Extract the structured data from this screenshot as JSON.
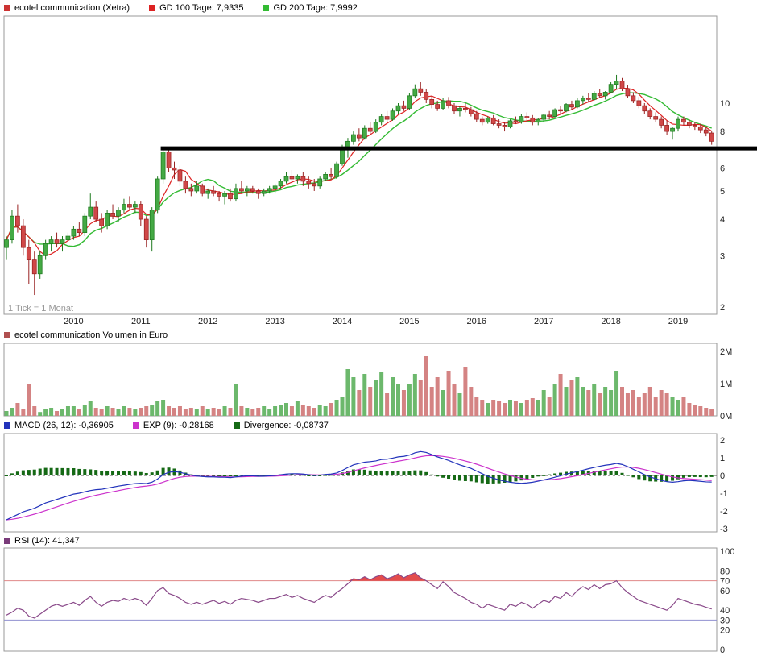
{
  "header": {
    "title": "ecotel communication (Xetra)",
    "gd100_label": "GD 100 Tage: 7,9335",
    "gd200_label": "GD 200 Tage: 7,9992"
  },
  "price_panel": {
    "tick_note": "1 Tick = 1 Monat",
    "y_ticks": [
      10,
      8,
      6,
      5,
      4,
      3,
      2
    ],
    "x_labels": [
      "2010",
      "2011",
      "2012",
      "2013",
      "2014",
      "2015",
      "2016",
      "2017",
      "2018",
      "2019"
    ]
  },
  "volume_panel": {
    "title": "ecotel communication Volumen in Euro",
    "y_ticks": [
      "2M",
      "1M",
      "0M"
    ]
  },
  "macd_panel": {
    "macd_label": "MACD (26, 12): -0,36905",
    "exp_label": "EXP (9): -0,28168",
    "div_label": "Divergence: -0,08737",
    "y_ticks": [
      2,
      1,
      0,
      -1,
      -2,
      -3
    ]
  },
  "rsi_panel": {
    "label": "RSI (14): 41,347",
    "y_ticks": [
      100,
      80,
      70,
      60,
      40,
      30,
      20,
      0
    ]
  },
  "colors": {
    "title_marker": "#cc3333",
    "gd100": "#dd2222",
    "gd200": "#33bb33",
    "up": "#44a944",
    "up_border": "#1e7a1e",
    "down": "#d04848",
    "down_border": "#992222",
    "resistance": "#000000",
    "volume_marker": "#b05050",
    "vol_up": "#6cb86c",
    "vol_down": "#d48383",
    "macd_line": "#2233bb",
    "exp_line": "#cc33cc",
    "divergence": "#156915",
    "rsi_line": "#8a4a8a",
    "rsi_marker": "#7a3b7a",
    "rsi_fill": "#e03838",
    "overbought_line": "#e08888",
    "oversold_line": "#9090d0",
    "overbought_text": "#cc3333",
    "oversold_text": "#5555cc",
    "frame": "#999999"
  },
  "chart_data": [
    {
      "type": "candlestick",
      "title": "ecotel communication (Xetra)",
      "x_start": "2009-01",
      "x_interval": "month",
      "yscale": "log",
      "ylim": [
        2,
        12.5
      ],
      "y_ticks": [
        10,
        8,
        6,
        5,
        4,
        3,
        2
      ],
      "moving_averages": [
        {
          "name": "GD 100 Tage",
          "current": 7.9335,
          "window_months": 5,
          "color_key": "gd100"
        },
        {
          "name": "GD 200 Tage",
          "current": 7.9992,
          "window_months": 10,
          "color_key": "gd200"
        }
      ],
      "resistance_line": {
        "level": 7,
        "start_index": 28
      },
      "note": "1 Tick = 1 Monat",
      "ohlc": [
        [
          3.2,
          3.5,
          2.9,
          3.4
        ],
        [
          3.4,
          4.3,
          3.3,
          4.1
        ],
        [
          4.1,
          4.5,
          3.6,
          3.8
        ],
        [
          3.8,
          4.0,
          3.0,
          3.2
        ],
        [
          3.2,
          3.4,
          2.4,
          2.9
        ],
        [
          2.9,
          3.1,
          2.2,
          2.6
        ],
        [
          2.6,
          3.1,
          2.5,
          3.0
        ],
        [
          3.0,
          3.4,
          2.9,
          3.3
        ],
        [
          3.3,
          3.5,
          3.1,
          3.4
        ],
        [
          3.4,
          3.6,
          3.2,
          3.3
        ],
        [
          3.3,
          3.5,
          3.1,
          3.4
        ],
        [
          3.4,
          3.6,
          3.3,
          3.5
        ],
        [
          3.5,
          3.8,
          3.4,
          3.7
        ],
        [
          3.7,
          3.9,
          3.5,
          3.6
        ],
        [
          3.6,
          4.2,
          3.5,
          4.1
        ],
        [
          4.1,
          4.9,
          4.0,
          4.4
        ],
        [
          4.4,
          4.6,
          3.9,
          4.0
        ],
        [
          4.0,
          4.2,
          3.6,
          3.8
        ],
        [
          3.8,
          4.3,
          3.7,
          4.2
        ],
        [
          4.2,
          4.5,
          4.0,
          4.1
        ],
        [
          4.1,
          4.4,
          3.9,
          4.3
        ],
        [
          4.3,
          4.7,
          4.2,
          4.5
        ],
        [
          4.5,
          4.8,
          4.3,
          4.4
        ],
        [
          4.4,
          4.6,
          4.2,
          4.5
        ],
        [
          4.5,
          4.6,
          3.8,
          4.0
        ],
        [
          4.0,
          4.1,
          3.2,
          3.4
        ],
        [
          3.4,
          4.4,
          3.1,
          4.3
        ],
        [
          4.3,
          5.6,
          4.2,
          5.5
        ],
        [
          5.5,
          7.05,
          5.3,
          6.8
        ],
        [
          6.8,
          7.0,
          5.8,
          6.0
        ],
        [
          6.0,
          6.3,
          5.5,
          5.9
        ],
        [
          5.9,
          6.1,
          5.2,
          5.4
        ],
        [
          5.4,
          5.6,
          4.9,
          5.1
        ],
        [
          5.1,
          5.3,
          4.8,
          5.0
        ],
        [
          5.0,
          5.4,
          4.9,
          5.2
        ],
        [
          5.2,
          5.3,
          4.8,
          4.9
        ],
        [
          4.9,
          5.1,
          4.7,
          5.0
        ],
        [
          5.0,
          5.2,
          4.8,
          4.9
        ],
        [
          4.9,
          5.0,
          4.6,
          4.8
        ],
        [
          4.8,
          5.0,
          4.5,
          4.9
        ],
        [
          4.9,
          5.1,
          4.6,
          4.7
        ],
        [
          4.7,
          5.3,
          4.6,
          5.1
        ],
        [
          5.1,
          5.4,
          4.9,
          5.0
        ],
        [
          5.0,
          5.2,
          4.8,
          5.1
        ],
        [
          5.1,
          5.2,
          4.9,
          5.0
        ],
        [
          5.0,
          5.1,
          4.7,
          4.9
        ],
        [
          4.9,
          5.1,
          4.8,
          5.0
        ],
        [
          5.0,
          5.2,
          4.9,
          5.1
        ],
        [
          5.1,
          5.3,
          4.9,
          5.2
        ],
        [
          5.2,
          5.5,
          5.1,
          5.4
        ],
        [
          5.4,
          5.8,
          5.3,
          5.6
        ],
        [
          5.6,
          5.9,
          5.4,
          5.5
        ],
        [
          5.5,
          5.7,
          5.3,
          5.6
        ],
        [
          5.6,
          5.8,
          5.2,
          5.4
        ],
        [
          5.4,
          5.6,
          5.1,
          5.3
        ],
        [
          5.3,
          5.5,
          5.0,
          5.2
        ],
        [
          5.2,
          5.6,
          5.1,
          5.5
        ],
        [
          5.5,
          5.8,
          5.4,
          5.7
        ],
        [
          5.7,
          6.0,
          5.5,
          5.6
        ],
        [
          5.6,
          6.3,
          5.5,
          6.2
        ],
        [
          6.2,
          7.2,
          6.1,
          7.0
        ],
        [
          7.0,
          7.6,
          6.5,
          7.4
        ],
        [
          7.4,
          8.0,
          7.2,
          7.8
        ],
        [
          7.8,
          8.2,
          7.4,
          7.6
        ],
        [
          7.6,
          8.4,
          7.5,
          8.2
        ],
        [
          8.2,
          8.6,
          7.8,
          8.0
        ],
        [
          8.0,
          8.8,
          7.9,
          8.6
        ],
        [
          8.6,
          9.2,
          8.4,
          9.0
        ],
        [
          9.0,
          9.4,
          8.6,
          8.8
        ],
        [
          8.8,
          9.6,
          8.7,
          9.4
        ],
        [
          9.4,
          10.0,
          9.2,
          9.8
        ],
        [
          9.8,
          10.2,
          9.4,
          9.6
        ],
        [
          9.6,
          10.8,
          9.5,
          10.6
        ],
        [
          10.6,
          11.6,
          10.4,
          11.2
        ],
        [
          11.2,
          11.8,
          10.6,
          10.9
        ],
        [
          10.9,
          11.2,
          10.0,
          10.3
        ],
        [
          10.3,
          10.6,
          9.6,
          9.9
        ],
        [
          9.9,
          10.2,
          9.4,
          9.6
        ],
        [
          9.6,
          10.4,
          9.5,
          10.2
        ],
        [
          10.2,
          10.5,
          9.6,
          9.8
        ],
        [
          9.8,
          10.0,
          9.2,
          9.4
        ],
        [
          9.4,
          9.8,
          9.0,
          9.6
        ],
        [
          9.6,
          10.0,
          9.3,
          9.5
        ],
        [
          9.5,
          9.7,
          9.0,
          9.2
        ],
        [
          9.2,
          9.4,
          8.6,
          8.8
        ],
        [
          8.8,
          9.0,
          8.4,
          8.6
        ],
        [
          8.6,
          9.0,
          8.5,
          8.9
        ],
        [
          8.9,
          9.1,
          8.4,
          8.5
        ],
        [
          8.5,
          8.8,
          8.2,
          8.4
        ],
        [
          8.4,
          8.6,
          8.0,
          8.3
        ],
        [
          8.3,
          8.8,
          8.2,
          8.7
        ],
        [
          8.7,
          9.0,
          8.5,
          8.6
        ],
        [
          8.6,
          9.2,
          8.5,
          9.0
        ],
        [
          9.0,
          9.3,
          8.7,
          8.9
        ],
        [
          8.9,
          9.1,
          8.4,
          8.6
        ],
        [
          8.6,
          8.9,
          8.4,
          8.8
        ],
        [
          8.8,
          9.2,
          8.6,
          9.1
        ],
        [
          9.1,
          9.4,
          8.8,
          9.0
        ],
        [
          9.0,
          9.6,
          8.9,
          9.5
        ],
        [
          9.5,
          9.8,
          9.2,
          9.4
        ],
        [
          9.4,
          10.0,
          9.3,
          9.9
        ],
        [
          9.9,
          10.2,
          9.5,
          9.7
        ],
        [
          9.7,
          10.4,
          9.6,
          10.2
        ],
        [
          10.2,
          10.6,
          9.9,
          10.4
        ],
        [
          10.4,
          10.8,
          10.1,
          10.3
        ],
        [
          10.3,
          11.0,
          10.2,
          10.8
        ],
        [
          10.8,
          11.2,
          10.4,
          10.6
        ],
        [
          10.6,
          11.0,
          10.3,
          10.9
        ],
        [
          10.9,
          11.8,
          10.8,
          11.6
        ],
        [
          11.6,
          12.5,
          11.2,
          11.9
        ],
        [
          11.9,
          12.2,
          11.0,
          11.2
        ],
        [
          11.2,
          11.5,
          10.4,
          10.6
        ],
        [
          10.6,
          10.9,
          10.0,
          10.2
        ],
        [
          10.2,
          10.5,
          9.6,
          9.8
        ],
        [
          9.8,
          10.0,
          9.2,
          9.4
        ],
        [
          9.4,
          9.6,
          8.8,
          9.0
        ],
        [
          9.0,
          9.3,
          8.6,
          8.8
        ],
        [
          8.8,
          9.0,
          8.2,
          8.4
        ],
        [
          8.4,
          8.7,
          7.8,
          8.0
        ],
        [
          8.0,
          8.3,
          7.5,
          8.2
        ],
        [
          8.2,
          9.0,
          8.0,
          8.8
        ],
        [
          8.8,
          9.0,
          8.4,
          8.6
        ],
        [
          8.6,
          8.8,
          8.2,
          8.4
        ],
        [
          8.4,
          8.6,
          8.1,
          8.3
        ],
        [
          8.3,
          8.5,
          7.9,
          8.1
        ],
        [
          8.1,
          8.3,
          7.7,
          7.9
        ],
        [
          7.9,
          8.0,
          7.2,
          7.4
        ]
      ]
    },
    {
      "type": "bar",
      "title": "ecotel communication Volumen in Euro",
      "unit": "EUR millions",
      "ylim": [
        0,
        2
      ],
      "y_ticks": [
        "2M",
        "1M",
        "0M"
      ],
      "values": [
        0.15,
        0.25,
        0.4,
        0.2,
        1.0,
        0.3,
        0.12,
        0.2,
        0.25,
        0.15,
        0.2,
        0.3,
        0.3,
        0.2,
        0.35,
        0.45,
        0.25,
        0.2,
        0.3,
        0.25,
        0.2,
        0.3,
        0.25,
        0.2,
        0.25,
        0.3,
        0.35,
        0.45,
        0.5,
        0.3,
        0.25,
        0.3,
        0.2,
        0.25,
        0.2,
        0.3,
        0.2,
        0.25,
        0.2,
        0.3,
        0.25,
        1.0,
        0.3,
        0.25,
        0.2,
        0.25,
        0.3,
        0.2,
        0.3,
        0.35,
        0.4,
        0.3,
        0.45,
        0.35,
        0.3,
        0.25,
        0.35,
        0.3,
        0.4,
        0.5,
        0.6,
        1.45,
        1.2,
        0.8,
        1.3,
        0.9,
        1.1,
        1.35,
        0.7,
        1.2,
        1.0,
        0.8,
        1.0,
        1.3,
        1.1,
        1.85,
        0.9,
        1.2,
        0.8,
        1.4,
        1.0,
        0.7,
        1.5,
        0.9,
        0.6,
        0.5,
        0.4,
        0.5,
        0.45,
        0.4,
        0.5,
        0.45,
        0.4,
        0.5,
        0.55,
        0.5,
        0.8,
        0.6,
        1.0,
        1.3,
        0.9,
        1.1,
        1.2,
        0.9,
        0.8,
        1.0,
        0.7,
        0.9,
        0.8,
        1.4,
        0.9,
        0.7,
        0.8,
        0.6,
        0.7,
        0.9,
        0.6,
        0.8,
        0.7,
        0.6,
        0.5,
        0.6,
        0.4,
        0.35,
        0.3,
        0.25,
        0.2
      ]
    },
    {
      "type": "line",
      "title": "MACD",
      "ylim": [
        -3,
        2
      ],
      "y_ticks": [
        2,
        1,
        0,
        -1,
        -2,
        -3
      ],
      "series": [
        {
          "name": "MACD (26, 12)",
          "current": -0.36905
        },
        {
          "name": "EXP (9)",
          "current": -0.28168,
          "derived": "EMA9 of MACD"
        },
        {
          "name": "Divergence",
          "current": -0.08737,
          "derived": "MACD minus EXP"
        }
      ],
      "macd": [
        -2.5,
        -2.35,
        -2.2,
        -2.05,
        -1.95,
        -1.85,
        -1.7,
        -1.55,
        -1.45,
        -1.35,
        -1.25,
        -1.15,
        -1.05,
        -1.0,
        -0.92,
        -0.85,
        -0.8,
        -0.78,
        -0.72,
        -0.66,
        -0.6,
        -0.55,
        -0.5,
        -0.46,
        -0.44,
        -0.46,
        -0.38,
        -0.2,
        0.05,
        0.18,
        0.22,
        0.18,
        0.1,
        0.02,
        -0.03,
        -0.06,
        -0.08,
        -0.08,
        -0.1,
        -0.1,
        -0.12,
        -0.08,
        -0.04,
        -0.02,
        -0.02,
        -0.04,
        -0.04,
        -0.02,
        0.0,
        0.04,
        0.08,
        0.1,
        0.1,
        0.08,
        0.04,
        0.0,
        0.02,
        0.06,
        0.08,
        0.14,
        0.28,
        0.45,
        0.6,
        0.68,
        0.75,
        0.78,
        0.82,
        0.9,
        0.92,
        0.98,
        1.05,
        1.08,
        1.15,
        1.28,
        1.35,
        1.3,
        1.18,
        1.05,
        0.95,
        0.85,
        0.72,
        0.6,
        0.5,
        0.4,
        0.25,
        0.1,
        -0.05,
        -0.15,
        -0.25,
        -0.32,
        -0.38,
        -0.42,
        -0.44,
        -0.42,
        -0.38,
        -0.32,
        -0.25,
        -0.18,
        -0.1,
        -0.02,
        0.08,
        0.15,
        0.22,
        0.3,
        0.38,
        0.45,
        0.52,
        0.58,
        0.62,
        0.68,
        0.62,
        0.5,
        0.35,
        0.2,
        0.05,
        -0.08,
        -0.18,
        -0.28,
        -0.35,
        -0.38,
        -0.35,
        -0.3,
        -0.28,
        -0.3,
        -0.33,
        -0.36,
        -0.369
      ]
    },
    {
      "type": "line",
      "title": "RSI (14)",
      "current": 41.347,
      "ylim": [
        0,
        100
      ],
      "y_ticks": [
        100,
        80,
        70,
        60,
        40,
        30,
        20,
        0
      ],
      "overbought": 70,
      "oversold": 30,
      "values": [
        35,
        38,
        42,
        40,
        34,
        32,
        36,
        40,
        44,
        46,
        44,
        46,
        48,
        45,
        50,
        54,
        48,
        44,
        48,
        50,
        49,
        52,
        50,
        52,
        50,
        45,
        52,
        60,
        63,
        57,
        55,
        52,
        48,
        46,
        48,
        46,
        48,
        50,
        47,
        49,
        46,
        50,
        52,
        51,
        50,
        48,
        50,
        52,
        52,
        54,
        56,
        53,
        55,
        52,
        50,
        48,
        52,
        55,
        53,
        58,
        62,
        67,
        72,
        71,
        74,
        71,
        74,
        76,
        72,
        74,
        77,
        73,
        76,
        78,
        73,
        70,
        66,
        62,
        69,
        64,
        58,
        55,
        52,
        48,
        46,
        42,
        46,
        44,
        42,
        40,
        46,
        44,
        48,
        46,
        42,
        46,
        50,
        48,
        54,
        52,
        58,
        54,
        60,
        64,
        61,
        66,
        62,
        66,
        67,
        70,
        63,
        58,
        54,
        50,
        48,
        46,
        44,
        42,
        40,
        45,
        52,
        50,
        48,
        46,
        45,
        43,
        41.3
      ]
    }
  ]
}
